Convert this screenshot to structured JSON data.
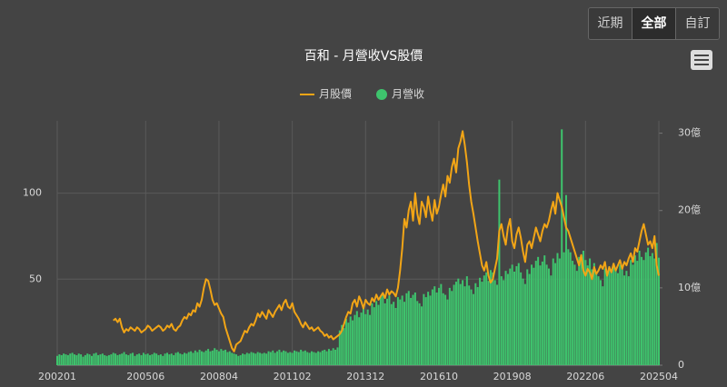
{
  "buttons": [
    "近期",
    "全部",
    "自訂"
  ],
  "chart_data": {
    "type": "bar",
    "title": "百和 - 月營收VS股價",
    "categories": [
      "200201",
      null,
      null,
      null,
      null,
      null,
      null,
      null,
      null,
      null,
      null,
      null,
      null,
      null,
      null,
      null,
      null,
      null,
      null,
      null,
      null,
      null,
      null,
      null,
      null,
      null,
      null,
      null,
      null,
      null,
      null,
      null,
      null,
      null,
      null,
      null,
      null,
      null,
      null,
      null,
      null,
      "200506",
      null,
      null,
      null,
      null,
      null,
      null,
      null,
      null,
      null,
      null,
      null,
      null,
      null,
      null,
      null,
      null,
      null,
      null,
      null,
      null,
      null,
      null,
      null,
      null,
      null,
      null,
      null,
      null,
      null,
      null,
      null,
      null,
      null,
      "200804",
      null,
      null,
      null,
      null,
      null,
      null,
      null,
      null,
      null,
      null,
      null,
      null,
      null,
      null,
      null,
      null,
      null,
      null,
      null,
      null,
      null,
      null,
      null,
      null,
      null,
      null,
      null,
      null,
      null,
      null,
      null,
      null,
      null,
      "201102",
      null,
      null,
      null,
      null,
      null,
      null,
      null,
      null,
      null,
      null,
      null,
      null,
      null,
      null,
      null,
      null,
      null,
      null,
      null,
      null,
      null,
      null,
      null,
      null,
      null,
      null,
      null,
      null,
      null,
      null,
      null,
      null,
      null,
      "201312",
      null,
      null,
      null,
      null,
      null,
      null,
      null,
      null,
      null,
      null,
      null,
      null,
      null,
      null,
      null,
      null,
      null,
      null,
      null,
      null,
      null,
      null,
      null,
      null,
      null,
      null,
      null,
      null,
      null,
      null,
      null,
      null,
      null,
      "201610",
      null,
      null,
      null,
      null,
      null,
      null,
      null,
      null,
      null,
      null,
      null,
      null,
      null,
      null,
      null,
      null,
      null,
      null,
      null,
      null,
      null,
      null,
      null,
      null,
      null,
      null,
      null,
      null,
      null,
      null,
      null,
      null,
      null,
      "201908",
      null,
      null,
      null,
      null,
      null,
      null,
      null,
      null,
      null,
      null,
      null,
      null,
      null,
      null,
      null,
      null,
      null,
      null,
      null,
      null,
      null,
      null,
      null,
      null,
      null,
      null,
      null,
      null,
      null,
      null,
      null,
      null,
      null,
      "202206",
      null,
      null,
      null,
      null,
      null,
      null,
      null,
      null,
      null,
      null,
      null,
      null,
      null,
      null,
      null,
      null,
      null,
      null,
      null,
      null,
      null,
      null,
      null,
      null,
      null,
      null,
      null,
      null,
      null,
      null,
      null,
      null,
      null,
      "202504"
    ],
    "series": [
      {
        "name": "月股價",
        "type": "line",
        "axis": "y",
        "color": "#f2a516",
        "values": [
          null,
          null,
          null,
          null,
          null,
          null,
          null,
          null,
          null,
          null,
          null,
          null,
          null,
          null,
          null,
          null,
          null,
          null,
          null,
          null,
          null,
          null,
          null,
          null,
          null,
          null,
          26,
          27,
          25,
          27,
          22,
          19,
          21,
          20,
          22,
          21,
          20,
          22,
          21,
          19,
          20,
          21,
          23,
          22,
          20,
          21,
          22,
          23,
          22,
          20,
          21,
          23,
          22,
          24,
          21,
          20,
          22,
          23,
          26,
          28,
          27,
          30,
          29,
          32,
          31,
          36,
          34,
          38,
          45,
          50,
          49,
          44,
          38,
          35,
          36,
          33,
          30,
          28,
          22,
          18,
          14,
          10,
          8,
          12,
          13,
          14,
          17,
          20,
          19,
          22,
          24,
          23,
          26,
          30,
          28,
          31,
          29,
          27,
          32,
          30,
          28,
          31,
          33,
          35,
          32,
          36,
          38,
          34,
          33,
          36,
          31,
          29,
          27,
          24,
          22,
          25,
          23,
          21,
          22,
          20,
          21,
          22,
          20,
          19,
          17,
          18,
          16,
          17,
          15,
          16,
          17,
          18,
          20,
          24,
          28,
          31,
          30,
          36,
          38,
          34,
          40,
          37,
          33,
          38,
          36,
          35,
          39,
          37,
          41,
          38,
          40,
          42,
          39,
          44,
          41,
          43,
          42,
          40,
          45,
          55,
          68,
          85,
          80,
          90,
          95,
          84,
          100,
          88,
          82,
          95,
          92,
          86,
          98,
          90,
          84,
          96,
          88,
          92,
          99,
          105,
          98,
          110,
          106,
          115,
          120,
          112,
          126,
          130,
          136,
          128,
          118,
          105,
          95,
          88,
          80,
          72,
          65,
          58,
          55,
          60,
          52,
          48,
          50,
          56,
          62,
          78,
          82,
          75,
          70,
          80,
          85,
          72,
          68,
          76,
          80,
          74,
          66,
          60,
          70,
          72,
          68,
          74,
          80,
          76,
          72,
          78,
          82,
          80,
          84,
          90,
          95,
          88,
          100,
          96,
          92,
          86,
          80,
          78,
          74,
          70,
          66,
          62,
          58,
          64,
          55,
          52,
          56,
          54,
          50,
          57,
          53,
          55,
          58,
          56,
          60,
          52,
          57,
          54,
          59,
          55,
          58,
          61,
          56,
          60,
          58,
          62,
          65,
          60,
          68,
          66,
          72,
          78,
          82,
          76,
          70,
          72,
          68,
          75,
          58,
          52
        ]
      },
      {
        "name": "月營收",
        "type": "bar",
        "axis": "y2",
        "color": "#3ec46d",
        "values": [
          1.2,
          1.4,
          1.3,
          1.5,
          1.4,
          1.3,
          1.5,
          1.6,
          1.4,
          1.3,
          1.5,
          1.4,
          1.1,
          1.3,
          1.5,
          1.4,
          1.2,
          1.5,
          1.6,
          1.3,
          1.4,
          1.5,
          1.3,
          1.2,
          1.3,
          1.4,
          1.6,
          1.5,
          1.3,
          1.4,
          1.5,
          1.7,
          1.4,
          1.3,
          1.5,
          1.6,
          1.2,
          1.4,
          1.5,
          1.3,
          1.6,
          1.4,
          1.5,
          1.3,
          1.4,
          1.6,
          1.5,
          1.3,
          1.4,
          1.2,
          1.5,
          1.6,
          1.4,
          1.5,
          1.3,
          1.6,
          1.7,
          1.5,
          1.4,
          1.6,
          1.5,
          1.7,
          1.8,
          1.6,
          1.9,
          1.7,
          2.0,
          1.8,
          1.7,
          1.9,
          2.1,
          1.8,
          1.9,
          2.2,
          2.0,
          1.8,
          2.1,
          1.9,
          2.0,
          1.7,
          1.8,
          1.6,
          1.5,
          1.4,
          1.2,
          1.3,
          1.5,
          1.4,
          1.6,
          1.5,
          1.7,
          1.6,
          1.5,
          1.7,
          1.6,
          1.5,
          1.6,
          1.5,
          1.8,
          1.7,
          1.9,
          1.6,
          1.8,
          2.0,
          1.7,
          1.9,
          1.8,
          1.6,
          1.7,
          1.6,
          1.9,
          1.8,
          1.7,
          2.0,
          1.8,
          1.9,
          1.7,
          1.6,
          1.8,
          1.7,
          1.6,
          1.8,
          1.7,
          1.9,
          2.0,
          1.8,
          2.1,
          1.9,
          2.2,
          2.0,
          2.3,
          4.5,
          5.2,
          4.8,
          6.0,
          5.5,
          6.3,
          5.8,
          6.5,
          7.0,
          6.2,
          6.8,
          7.4,
          6.6,
          7.2,
          6.5,
          8.0,
          7.5,
          8.3,
          7.8,
          8.8,
          9.2,
          8.0,
          8.6,
          9.0,
          7.9,
          8.2,
          7.4,
          8.8,
          8.5,
          9.0,
          8.2,
          9.3,
          9.6,
          8.7,
          9.1,
          9.4,
          8.3,
          8.0,
          7.6,
          9.2,
          8.8,
          9.5,
          9.0,
          9.8,
          10.2,
          9.4,
          10.0,
          10.5,
          9.3,
          9.1,
          8.5,
          10.0,
          9.6,
          10.4,
          10.8,
          11.2,
          10.5,
          11.0,
          10.2,
          11.5,
          10.3,
          9.8,
          9.2,
          10.6,
          10.1,
          11.3,
          10.8,
          11.6,
          12.0,
          10.9,
          12.3,
          12.0,
          11.0,
          10.4,
          24.0,
          11.5,
          11.0,
          12.2,
          11.8,
          12.5,
          13.0,
          12.1,
          12.8,
          13.2,
          12.0,
          11.2,
          10.5,
          12.4,
          11.8,
          13.0,
          12.6,
          13.5,
          14.0,
          12.9,
          13.4,
          14.2,
          13.0,
          12.5,
          11.6,
          13.8,
          13.2,
          14.5,
          13.8,
          30.5,
          14.6,
          22.0,
          15.0,
          14.6,
          13.5,
          13.0,
          12.2,
          14.0,
          13.5,
          14.8,
          13.6,
          12.9,
          13.8,
          12.4,
          13.2,
          12.0,
          11.5,
          11.0,
          10.2,
          12.5,
          11.8,
          12.8,
          12.0,
          13.2,
          12.6,
          11.9,
          13.0,
          12.4,
          11.6,
          12.2,
          11.5,
          13.6,
          13.0,
          14.2,
          13.5,
          14.8,
          14.0,
          13.6,
          14.6,
          15.2,
          14.1,
          14.5,
          13.8,
          15.8,
          13.9
        ]
      }
    ],
    "ylim": [
      0,
      142
    ],
    "yticks": [
      50,
      100
    ],
    "y2lim": [
      0,
      31.6
    ],
    "y2ticks": [
      0,
      {
        "value": 10,
        "label": "10億"
      },
      {
        "value": 20,
        "label": "20億"
      },
      {
        "value": 30,
        "label": "30億"
      }
    ],
    "grid": true
  }
}
